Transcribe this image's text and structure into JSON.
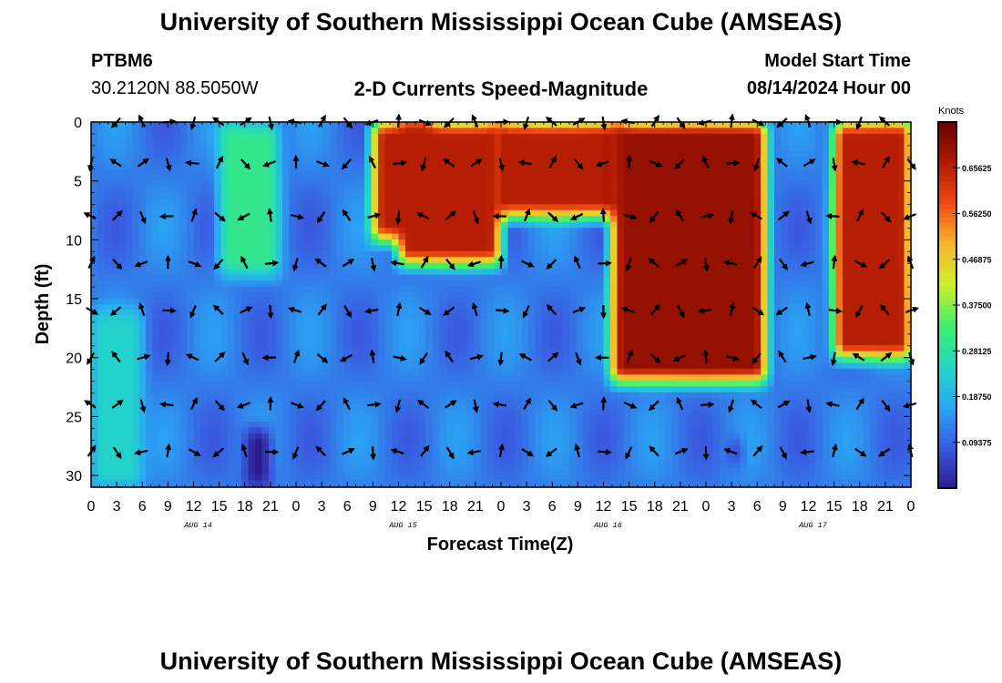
{
  "header": {
    "title": "University of Southern Mississippi Ocean Cube (AMSEAS)",
    "station_id": "PTBM6",
    "station_coords": "30.2120N  88.5050W",
    "plot_title": "2-D Currents Speed-Magnitude",
    "model_start_label": "Model Start Time",
    "model_start_value": "08/14/2024 Hour 00"
  },
  "footer": {
    "title": "University of Southern Mississippi Ocean Cube (AMSEAS)"
  },
  "colors": {
    "scale": [
      "#2c1b8c",
      "#3a5be0",
      "#2aa7f4",
      "#22d8c4",
      "#3ef06a",
      "#d0ef2a",
      "#f8b62e",
      "#ee4a13",
      "#b01a02",
      "#6a0000"
    ]
  },
  "chart_data": {
    "type": "heatmap",
    "title": "2-D Currents Speed-Magnitude",
    "xlabel": "Forecast Time(Z)",
    "ylabel": "Depth (ft)",
    "x_range_hours": [
      0,
      96
    ],
    "y_range_ft": [
      0,
      31
    ],
    "x_ticks": [
      {
        "hour": 0,
        "label": "0"
      },
      {
        "hour": 3,
        "label": "3"
      },
      {
        "hour": 6,
        "label": "6"
      },
      {
        "hour": 9,
        "label": "9"
      },
      {
        "hour": 12,
        "label": "12"
      },
      {
        "hour": 15,
        "label": "15"
      },
      {
        "hour": 18,
        "label": "18"
      },
      {
        "hour": 21,
        "label": "21"
      },
      {
        "hour": 24,
        "label": "0"
      },
      {
        "hour": 27,
        "label": "3"
      },
      {
        "hour": 30,
        "label": "6"
      },
      {
        "hour": 33,
        "label": "9"
      },
      {
        "hour": 36,
        "label": "12"
      },
      {
        "hour": 39,
        "label": "15"
      },
      {
        "hour": 42,
        "label": "18"
      },
      {
        "hour": 45,
        "label": "21"
      },
      {
        "hour": 48,
        "label": "0"
      },
      {
        "hour": 51,
        "label": "3"
      },
      {
        "hour": 54,
        "label": "6"
      },
      {
        "hour": 57,
        "label": "9"
      },
      {
        "hour": 60,
        "label": "12"
      },
      {
        "hour": 63,
        "label": "15"
      },
      {
        "hour": 66,
        "label": "18"
      },
      {
        "hour": 69,
        "label": "21"
      },
      {
        "hour": 72,
        "label": "0"
      },
      {
        "hour": 75,
        "label": "3"
      },
      {
        "hour": 78,
        "label": "6"
      },
      {
        "hour": 81,
        "label": "9"
      },
      {
        "hour": 84,
        "label": "12"
      },
      {
        "hour": 87,
        "label": "15"
      },
      {
        "hour": 90,
        "label": "18"
      },
      {
        "hour": 93,
        "label": "21"
      },
      {
        "hour": 96,
        "label": "0"
      }
    ],
    "date_labels": [
      {
        "hour": 12,
        "label": "AUG 14"
      },
      {
        "hour": 36,
        "label": "AUG 15"
      },
      {
        "hour": 60,
        "label": "AUG 16"
      },
      {
        "hour": 84,
        "label": "AUG 17"
      }
    ],
    "y_ticks": [
      0,
      5,
      10,
      15,
      20,
      25,
      30
    ],
    "colorbar": {
      "title": "Knots",
      "min": 0,
      "max": 0.75,
      "tick_values": [
        0.65625,
        0.5625,
        0.46875,
        0.375,
        0.28125,
        0.1875,
        0.09375
      ],
      "tick_labels": [
        "0.65625",
        "0.56250",
        "0.46875",
        "0.37500",
        "0.28125",
        "0.18750",
        "0.09375"
      ]
    },
    "speed_features": [
      {
        "hours": [
          15,
          22
        ],
        "depths": [
          0,
          13
        ],
        "speed": 0.3
      },
      {
        "hours": [
          33,
          40
        ],
        "depths": [
          0,
          10
        ],
        "speed": 0.66
      },
      {
        "hours": [
          36,
          48
        ],
        "depths": [
          0,
          12
        ],
        "speed": 0.66
      },
      {
        "hours": [
          47,
          62
        ],
        "depths": [
          0,
          8
        ],
        "speed": 0.66
      },
      {
        "hours": [
          61,
          79
        ],
        "depths": [
          0,
          22
        ],
        "speed": 0.7
      },
      {
        "hours": [
          87,
          96
        ],
        "depths": [
          0,
          20
        ],
        "speed": 0.66
      },
      {
        "hours": [
          0,
          6
        ],
        "depths": [
          16,
          31
        ],
        "speed": 0.24
      },
      {
        "hours": [
          18,
          21
        ],
        "depths": [
          26,
          31
        ],
        "speed": 0.0
      },
      {
        "hours": [
          75,
          76
        ],
        "depths": [
          27,
          29
        ],
        "speed": 0.0
      }
    ],
    "vector_depths_ft": [
      0,
      3.5,
      8,
      12,
      16,
      20,
      24,
      28
    ],
    "vector_hours": [
      0,
      3,
      6,
      9,
      12,
      15,
      18,
      21,
      24,
      27,
      30,
      33,
      36,
      39,
      42,
      45,
      48,
      51,
      54,
      57,
      60,
      63,
      66,
      69,
      72,
      75,
      78,
      81,
      84,
      87,
      90,
      93,
      96
    ],
    "direction_note": "arrows show current direction in compass degrees (0 = north/up)"
  }
}
